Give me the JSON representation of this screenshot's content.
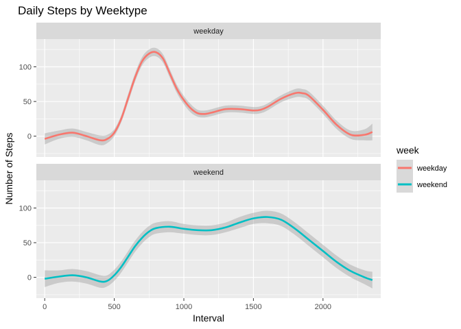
{
  "chart_data": {
    "type": "line",
    "title": "Daily Steps by Weektype",
    "xlabel": "Interval",
    "ylabel": "Number of Steps",
    "xlim": [
      -60,
      2415
    ],
    "ylim": [
      -30,
      140
    ],
    "x_ticks": [
      0,
      500,
      1000,
      1500,
      2000
    ],
    "y_ticks": [
      0,
      50,
      100
    ],
    "grid": true,
    "smoothed_with_confidence_band": true,
    "legend": {
      "title": "week",
      "position": "right"
    },
    "panels": [
      {
        "strip_label": "weekday",
        "series": {
          "name": "weekday",
          "color": "#F8766D",
          "x": [
            0,
            100,
            200,
            300,
            400,
            450,
            500,
            550,
            600,
            650,
            700,
            750,
            800,
            850,
            900,
            950,
            1000,
            1050,
            1100,
            1150,
            1200,
            1300,
            1400,
            1500,
            1550,
            1600,
            1700,
            1800,
            1850,
            1900,
            2000,
            2100,
            2200,
            2300,
            2355
          ],
          "y": [
            -4,
            2,
            5,
            0,
            -6,
            -4,
            5,
            25,
            55,
            85,
            108,
            119,
            121,
            112,
            90,
            68,
            52,
            40,
            33,
            32,
            34,
            39,
            39,
            37,
            38,
            42,
            54,
            62,
            62,
            58,
            38,
            16,
            2,
            2,
            6
          ],
          "band": [
            8,
            6,
            6,
            6,
            7,
            6,
            5,
            5,
            6,
            6,
            6,
            6,
            6,
            6,
            6,
            6,
            6,
            6,
            5,
            5,
            5,
            5,
            5,
            5,
            5,
            5,
            5,
            6,
            6,
            6,
            6,
            6,
            6,
            8,
            12
          ]
        }
      },
      {
        "strip_label": "weekend",
        "series": {
          "name": "weekend",
          "color": "#00BFC4",
          "x": [
            0,
            100,
            200,
            300,
            400,
            450,
            500,
            550,
            600,
            650,
            700,
            750,
            800,
            900,
            1000,
            1100,
            1200,
            1300,
            1400,
            1500,
            1600,
            1700,
            1800,
            1900,
            2000,
            2100,
            2200,
            2300,
            2355
          ],
          "y": [
            -2,
            1,
            3,
            0,
            -6,
            -5,
            3,
            15,
            30,
            45,
            57,
            66,
            71,
            73,
            70,
            68,
            68,
            72,
            79,
            85,
            87,
            83,
            70,
            54,
            38,
            22,
            9,
            0,
            -4
          ],
          "band": [
            12,
            9,
            9,
            9,
            9,
            8,
            8,
            8,
            8,
            8,
            8,
            8,
            8,
            8,
            7,
            7,
            7,
            7,
            8,
            8,
            9,
            9,
            9,
            9,
            9,
            9,
            9,
            10,
            12
          ]
        }
      }
    ]
  }
}
